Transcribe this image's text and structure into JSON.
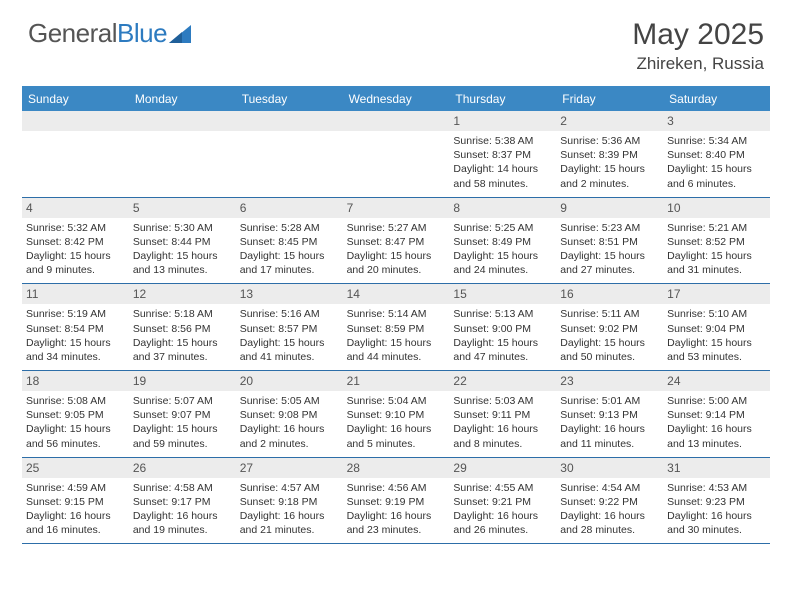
{
  "brand": {
    "part1": "General",
    "part2": "Blue"
  },
  "title": "May 2025",
  "location": "Zhireken, Russia",
  "colors": {
    "header_bg": "#3b88c4",
    "stripe_bg": "#ececec",
    "border": "#2d6ea8",
    "text": "#333333",
    "brand_gray": "#555555",
    "brand_blue": "#2d7bc0"
  },
  "day_headers": [
    "Sunday",
    "Monday",
    "Tuesday",
    "Wednesday",
    "Thursday",
    "Friday",
    "Saturday"
  ],
  "weeks": [
    [
      {
        "empty": true
      },
      {
        "empty": true
      },
      {
        "empty": true
      },
      {
        "empty": true
      },
      {
        "date": "1",
        "sunrise": "Sunrise: 5:38 AM",
        "sunset": "Sunset: 8:37 PM",
        "daylight": "Daylight: 14 hours and 58 minutes."
      },
      {
        "date": "2",
        "sunrise": "Sunrise: 5:36 AM",
        "sunset": "Sunset: 8:39 PM",
        "daylight": "Daylight: 15 hours and 2 minutes."
      },
      {
        "date": "3",
        "sunrise": "Sunrise: 5:34 AM",
        "sunset": "Sunset: 8:40 PM",
        "daylight": "Daylight: 15 hours and 6 minutes."
      }
    ],
    [
      {
        "date": "4",
        "sunrise": "Sunrise: 5:32 AM",
        "sunset": "Sunset: 8:42 PM",
        "daylight": "Daylight: 15 hours and 9 minutes."
      },
      {
        "date": "5",
        "sunrise": "Sunrise: 5:30 AM",
        "sunset": "Sunset: 8:44 PM",
        "daylight": "Daylight: 15 hours and 13 minutes."
      },
      {
        "date": "6",
        "sunrise": "Sunrise: 5:28 AM",
        "sunset": "Sunset: 8:45 PM",
        "daylight": "Daylight: 15 hours and 17 minutes."
      },
      {
        "date": "7",
        "sunrise": "Sunrise: 5:27 AM",
        "sunset": "Sunset: 8:47 PM",
        "daylight": "Daylight: 15 hours and 20 minutes."
      },
      {
        "date": "8",
        "sunrise": "Sunrise: 5:25 AM",
        "sunset": "Sunset: 8:49 PM",
        "daylight": "Daylight: 15 hours and 24 minutes."
      },
      {
        "date": "9",
        "sunrise": "Sunrise: 5:23 AM",
        "sunset": "Sunset: 8:51 PM",
        "daylight": "Daylight: 15 hours and 27 minutes."
      },
      {
        "date": "10",
        "sunrise": "Sunrise: 5:21 AM",
        "sunset": "Sunset: 8:52 PM",
        "daylight": "Daylight: 15 hours and 31 minutes."
      }
    ],
    [
      {
        "date": "11",
        "sunrise": "Sunrise: 5:19 AM",
        "sunset": "Sunset: 8:54 PM",
        "daylight": "Daylight: 15 hours and 34 minutes."
      },
      {
        "date": "12",
        "sunrise": "Sunrise: 5:18 AM",
        "sunset": "Sunset: 8:56 PM",
        "daylight": "Daylight: 15 hours and 37 minutes."
      },
      {
        "date": "13",
        "sunrise": "Sunrise: 5:16 AM",
        "sunset": "Sunset: 8:57 PM",
        "daylight": "Daylight: 15 hours and 41 minutes."
      },
      {
        "date": "14",
        "sunrise": "Sunrise: 5:14 AM",
        "sunset": "Sunset: 8:59 PM",
        "daylight": "Daylight: 15 hours and 44 minutes."
      },
      {
        "date": "15",
        "sunrise": "Sunrise: 5:13 AM",
        "sunset": "Sunset: 9:00 PM",
        "daylight": "Daylight: 15 hours and 47 minutes."
      },
      {
        "date": "16",
        "sunrise": "Sunrise: 5:11 AM",
        "sunset": "Sunset: 9:02 PM",
        "daylight": "Daylight: 15 hours and 50 minutes."
      },
      {
        "date": "17",
        "sunrise": "Sunrise: 5:10 AM",
        "sunset": "Sunset: 9:04 PM",
        "daylight": "Daylight: 15 hours and 53 minutes."
      }
    ],
    [
      {
        "date": "18",
        "sunrise": "Sunrise: 5:08 AM",
        "sunset": "Sunset: 9:05 PM",
        "daylight": "Daylight: 15 hours and 56 minutes."
      },
      {
        "date": "19",
        "sunrise": "Sunrise: 5:07 AM",
        "sunset": "Sunset: 9:07 PM",
        "daylight": "Daylight: 15 hours and 59 minutes."
      },
      {
        "date": "20",
        "sunrise": "Sunrise: 5:05 AM",
        "sunset": "Sunset: 9:08 PM",
        "daylight": "Daylight: 16 hours and 2 minutes."
      },
      {
        "date": "21",
        "sunrise": "Sunrise: 5:04 AM",
        "sunset": "Sunset: 9:10 PM",
        "daylight": "Daylight: 16 hours and 5 minutes."
      },
      {
        "date": "22",
        "sunrise": "Sunrise: 5:03 AM",
        "sunset": "Sunset: 9:11 PM",
        "daylight": "Daylight: 16 hours and 8 minutes."
      },
      {
        "date": "23",
        "sunrise": "Sunrise: 5:01 AM",
        "sunset": "Sunset: 9:13 PM",
        "daylight": "Daylight: 16 hours and 11 minutes."
      },
      {
        "date": "24",
        "sunrise": "Sunrise: 5:00 AM",
        "sunset": "Sunset: 9:14 PM",
        "daylight": "Daylight: 16 hours and 13 minutes."
      }
    ],
    [
      {
        "date": "25",
        "sunrise": "Sunrise: 4:59 AM",
        "sunset": "Sunset: 9:15 PM",
        "daylight": "Daylight: 16 hours and 16 minutes."
      },
      {
        "date": "26",
        "sunrise": "Sunrise: 4:58 AM",
        "sunset": "Sunset: 9:17 PM",
        "daylight": "Daylight: 16 hours and 19 minutes."
      },
      {
        "date": "27",
        "sunrise": "Sunrise: 4:57 AM",
        "sunset": "Sunset: 9:18 PM",
        "daylight": "Daylight: 16 hours and 21 minutes."
      },
      {
        "date": "28",
        "sunrise": "Sunrise: 4:56 AM",
        "sunset": "Sunset: 9:19 PM",
        "daylight": "Daylight: 16 hours and 23 minutes."
      },
      {
        "date": "29",
        "sunrise": "Sunrise: 4:55 AM",
        "sunset": "Sunset: 9:21 PM",
        "daylight": "Daylight: 16 hours and 26 minutes."
      },
      {
        "date": "30",
        "sunrise": "Sunrise: 4:54 AM",
        "sunset": "Sunset: 9:22 PM",
        "daylight": "Daylight: 16 hours and 28 minutes."
      },
      {
        "date": "31",
        "sunrise": "Sunrise: 4:53 AM",
        "sunset": "Sunset: 9:23 PM",
        "daylight": "Daylight: 16 hours and 30 minutes."
      }
    ]
  ]
}
